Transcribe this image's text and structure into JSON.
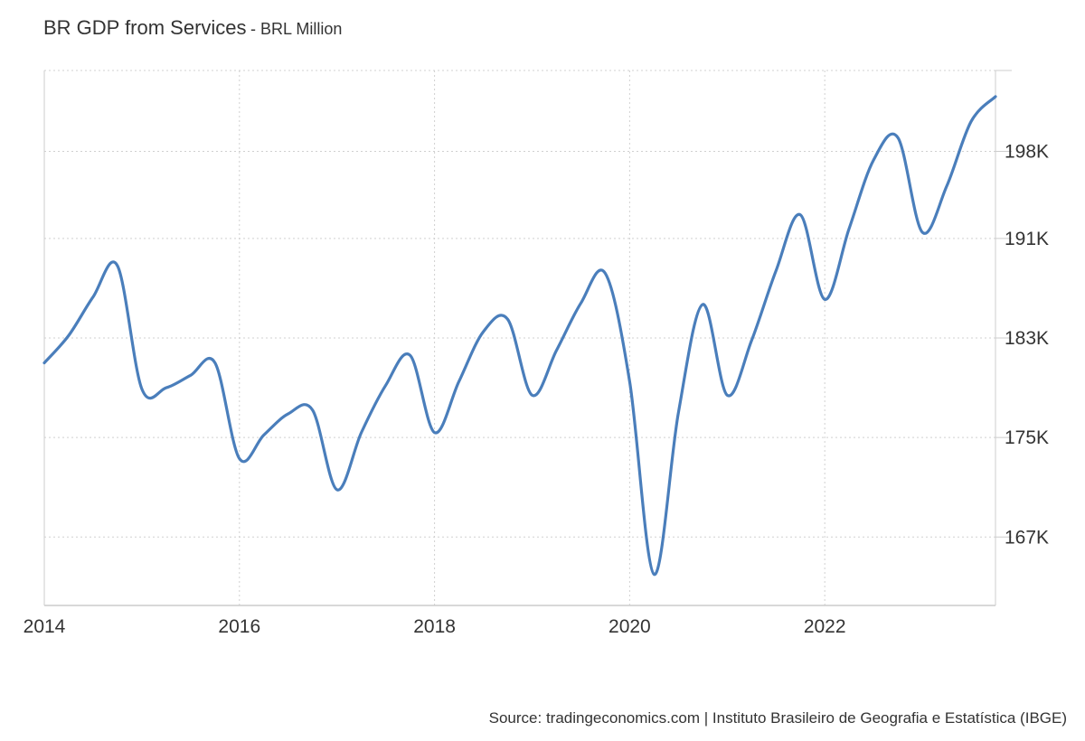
{
  "header": {
    "title": "BR GDP from Services",
    "subtitle": "- BRL Million"
  },
  "footer": {
    "source": "Source: tradingeconomics.com | Instituto Brasileiro de Geografia e Estatística (IBGE)"
  },
  "colors": {
    "line": "#4a7ebb",
    "grid": "#d0d0d0",
    "axis": "#cccccc"
  },
  "chart_data": {
    "type": "line",
    "title": "BR GDP from Services",
    "subtitle": "- BRL Million",
    "xlabel": "",
    "ylabel": "",
    "xlim": [
      2014.0,
      2023.75
    ],
    "ylim": [
      161500,
      204500
    ],
    "x_ticks": [
      2014,
      2016,
      2018,
      2020,
      2022
    ],
    "x_tick_labels": [
      "2014",
      "2016",
      "2018",
      "2020",
      "2022"
    ],
    "y_ticks": [
      167000,
      175000,
      183000,
      191000,
      198000
    ],
    "y_tick_labels": [
      "167K",
      "175K",
      "183K",
      "191K",
      "198K"
    ],
    "grid": true,
    "series": [
      {
        "x": [
          "2014-Q1",
          "2014-Q2",
          "2014-Q3",
          "2014-Q4",
          "2015-Q1",
          "2015-Q2",
          "2015-Q3",
          "2015-Q4",
          "2016-Q1",
          "2016-Q2",
          "2016-Q3",
          "2016-Q4",
          "2017-Q1",
          "2017-Q2",
          "2017-Q3",
          "2017-Q4",
          "2018-Q1",
          "2018-Q2",
          "2018-Q3",
          "2018-Q4",
          "2019-Q1",
          "2019-Q2",
          "2019-Q3",
          "2019-Q4",
          "2020-Q1",
          "2020-Q2",
          "2020-Q3",
          "2020-Q4",
          "2021-Q1",
          "2021-Q2",
          "2021-Q3",
          "2021-Q4",
          "2022-Q1",
          "2022-Q2",
          "2022-Q3",
          "2022-Q4",
          "2023-Q1",
          "2023-Q2",
          "2023-Q3",
          "2023-Q4"
        ],
        "values": [
          181000,
          183200,
          186300,
          188800,
          178900,
          179000,
          180000,
          181000,
          173300,
          175200,
          176900,
          177200,
          170800,
          175400,
          179200,
          181600,
          175400,
          179500,
          183500,
          184500,
          178400,
          182000,
          185800,
          188200,
          179500,
          164000,
          177000,
          185700,
          178400,
          182800,
          188400,
          192900,
          186100,
          191800,
          197300,
          199100,
          191500,
          195200,
          200400,
          202400
        ]
      }
    ]
  }
}
